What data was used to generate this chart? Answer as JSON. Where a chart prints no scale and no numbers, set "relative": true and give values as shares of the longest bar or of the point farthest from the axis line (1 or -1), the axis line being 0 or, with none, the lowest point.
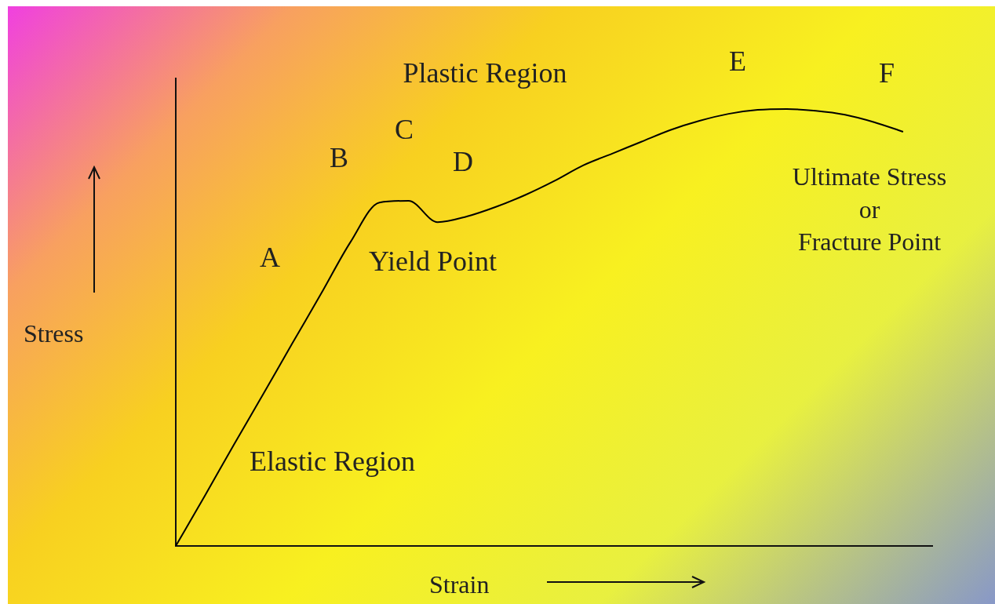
{
  "chart_data": {
    "type": "line",
    "relative": true,
    "xlabel": "Strain",
    "ylabel": "Stress",
    "categories": [
      null,
      null,
      null,
      null,
      null,
      null,
      null,
      null,
      null,
      null,
      null,
      null,
      null,
      null,
      null,
      null,
      null,
      null,
      null,
      null,
      null,
      null,
      null,
      null,
      null,
      null,
      null
    ],
    "series": [
      {
        "color": "#000000",
        "values": [
          0,
          0.115,
          0.232,
          0.347,
          0.463,
          0.578,
          0.695,
          0.786,
          0.79,
          0.741,
          0.754,
          0.776,
          0.803,
          0.835,
          0.871,
          0.898,
          0.925,
          0.952,
          0.973,
          0.989,
          0.998,
          1,
          0.996,
          0.987,
          0.97,
          0.948,
          null
        ]
      }
    ],
    "annotations": [
      "Plastic Region",
      "A",
      "B",
      "C",
      "D",
      "E",
      "F",
      "Yield Point",
      "Ultimate Stress\nor\nFracture Point",
      "Elastic Region"
    ],
    "grid": false,
    "legend": false
  }
}
